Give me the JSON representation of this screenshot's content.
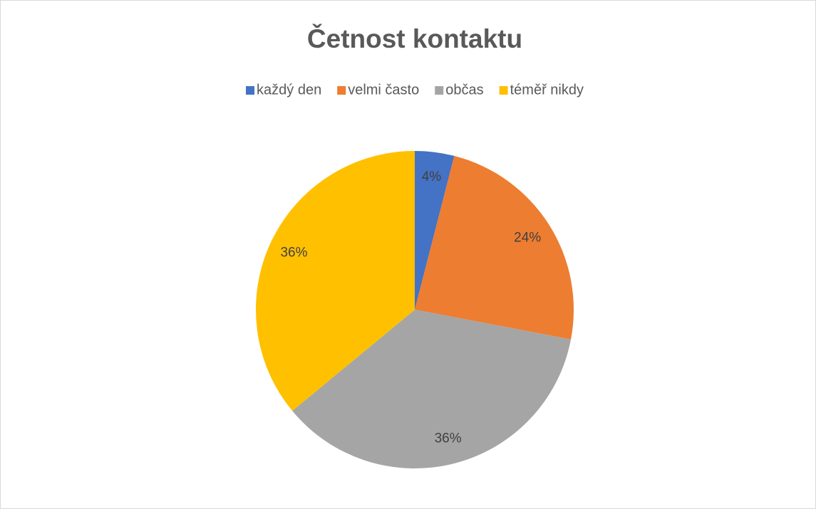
{
  "chart_data": {
    "type": "pie",
    "title": "Četnost kontaktu",
    "categories": [
      "každý den",
      "velmi často",
      "občas",
      "téměř nikdy"
    ],
    "values": [
      4,
      24,
      36,
      36
    ],
    "value_labels": [
      "4%",
      "24%",
      "36%",
      "36%"
    ],
    "colors": [
      "#4472c4",
      "#ed7d31",
      "#a5a5a5",
      "#ffc000"
    ],
    "legend": "top"
  }
}
